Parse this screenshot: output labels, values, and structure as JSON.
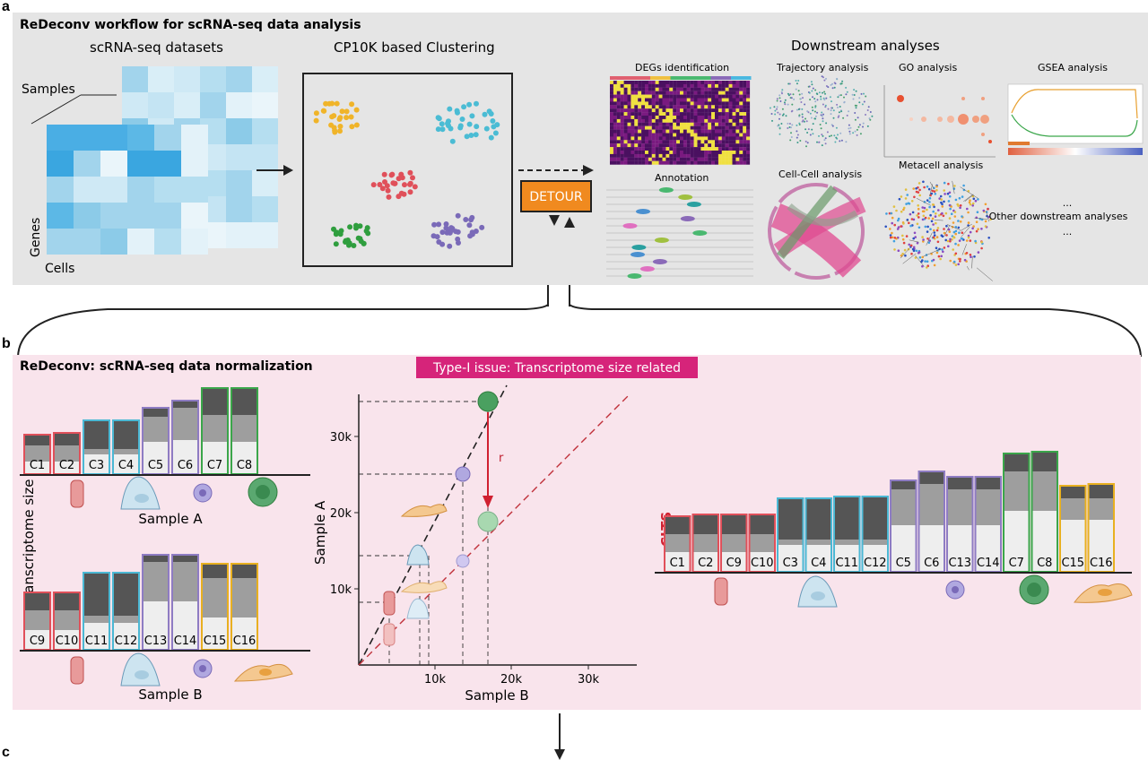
{
  "panel_a": {
    "letter": "a",
    "title": "ReDeconv workflow for scRNA-seq data analysis",
    "datasets_title": "scRNA-seq datasets",
    "samples_label": "Samples",
    "genes_label": "Genes",
    "cells_label": "Cells",
    "clustering_title": "CP10K based Clustering",
    "detour_label": "DETOUR",
    "downstream_title": "Downstream analyses",
    "analyses": {
      "degs": "DEGs identification",
      "trajectory": "Trajectory analysis",
      "go": "GO analysis",
      "gsea": "GSEA analysis",
      "annotation": "Annotation",
      "cellcell": "Cell-Cell analysis",
      "metacell": "Metacell analysis",
      "dots_top": "...",
      "other": "Other downstream analyses",
      "dots_bottom": "..."
    },
    "colors": {
      "background": "#e5e5e5",
      "detour": "#f08a1f",
      "cluster_yellow": "#f0b429",
      "cluster_cyan": "#4bbcd4",
      "cluster_red": "#e0505a",
      "cluster_green": "#2f9e3e",
      "cluster_purple": "#7a6ab8"
    }
  },
  "panel_b": {
    "letter": "b",
    "title": "ReDeconv: scRNA-seq data normalization",
    "issue_label": "Type-I issue: Transcriptome size related",
    "y_axis_label": "Transcriptome size",
    "sample_a_label": "Sample A",
    "sample_b_label": "Sample B",
    "clts_label": "CLTS",
    "sample_a_bars": [
      "C1",
      "C2",
      "C3",
      "C4",
      "C5",
      "C6",
      "C7",
      "C8"
    ],
    "sample_b_bars": [
      "C9",
      "C10",
      "C11",
      "C12",
      "C13",
      "C14",
      "C15",
      "C16"
    ],
    "clts_bars": [
      "C1",
      "C2",
      "C9",
      "C10",
      "C3",
      "C4",
      "C11",
      "C12",
      "C5",
      "C6",
      "C13",
      "C14",
      "C7",
      "C8",
      "C15",
      "C16"
    ],
    "colors": {
      "background": "#f9e4ec",
      "issue": "#d6247a",
      "red": "#e0505a",
      "cyan": "#4bb8d4",
      "purple": "#8e7cc3",
      "green": "#3aa64a",
      "yellow": "#e8b020",
      "dark": "#555555",
      "mid": "#9e9e9e",
      "light": "#eeeeee"
    }
  },
  "scatter": {
    "ylabel": "Sample A",
    "xlabel": "Sample B",
    "y_ticks": [
      "10k",
      "20k",
      "30k"
    ],
    "x_ticks": [
      "10k",
      "20k",
      "30k"
    ],
    "r_label": "r"
  },
  "panel_c": {
    "letter": "c"
  }
}
